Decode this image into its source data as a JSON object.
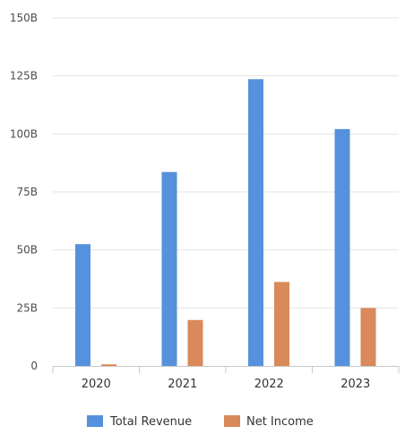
{
  "chart_data": {
    "type": "bar",
    "title": "",
    "xlabel": "",
    "ylabel": "",
    "categories": [
      "2020",
      "2021",
      "2022",
      "2023"
    ],
    "series": [
      {
        "name": "Total Revenue",
        "color": "#5591dc",
        "values": [
          52.5,
          83.6,
          123.6,
          102.1
        ]
      },
      {
        "name": "Net Income",
        "color": "#d9895a",
        "values": [
          0.7,
          19.8,
          36.2,
          25.0
        ]
      }
    ],
    "ylim": [
      0,
      150
    ],
    "yticks": [
      0,
      25,
      50,
      75,
      100,
      125,
      150
    ],
    "ytick_labels": [
      "0",
      "25B",
      "50B",
      "75B",
      "100B",
      "125B",
      "150B"
    ],
    "grid": true,
    "legend_position": "bottom"
  }
}
